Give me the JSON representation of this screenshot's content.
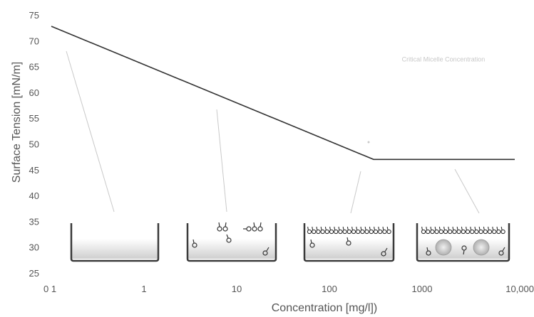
{
  "chart_data": {
    "type": "line",
    "title": "",
    "xlabel": "Concentration [mg/l])",
    "ylabel": "Surface Tension [mN/m]",
    "x_scale": "log",
    "xlim": [
      0.1,
      10000
    ],
    "ylim": [
      25,
      75
    ],
    "x_ticks": [
      0.1,
      1,
      10,
      100,
      1000,
      10000
    ],
    "x_tick_labels": [
      "0 1",
      "1",
      "10",
      "100",
      "1000",
      "10,000"
    ],
    "y_ticks": [
      25,
      30,
      35,
      40,
      45,
      50,
      55,
      60,
      65,
      70,
      75
    ],
    "y_tick_labels": [
      "25",
      "30",
      "35",
      "40",
      "45",
      "50",
      "55",
      "60",
      "65",
      "70",
      "75"
    ],
    "grid": false,
    "series": [
      {
        "name": "",
        "x": [
          0.1,
          300,
          10000
        ],
        "y": [
          72.8,
          47,
          47
        ]
      }
    ],
    "annotations": [
      {
        "text": "Critical Micelle Concentration",
        "x": 1700,
        "y": 66
      }
    ],
    "colors": {
      "line": "#333333",
      "axis_text": "#555555",
      "pointer": "#c9c9c9",
      "liquid": "#d4d4d4",
      "beaker": "#3a3a3a"
    }
  }
}
